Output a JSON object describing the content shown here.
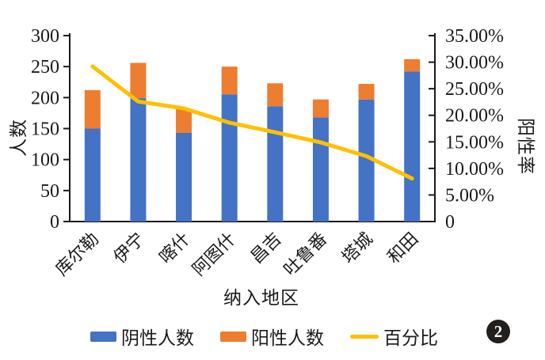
{
  "figure": {
    "badge_number": "2"
  },
  "chart_data": {
    "type": "bar",
    "subtype": "stacked-bar-with-line",
    "title": "",
    "xlabel": "纳入地区",
    "ylabel_left": "人数",
    "ylabel_right": "阳性率",
    "grid": false,
    "legend_position": "bottom",
    "categories": [
      "库尔勒",
      "伊宁",
      "喀什",
      "阿图什",
      "昌吉",
      "吐鲁番",
      "塔城",
      "和田"
    ],
    "left_axis": {
      "min": 0,
      "max": 300,
      "step": 50,
      "tick_labels": [
        "300",
        "250",
        "200",
        "150",
        "100",
        "50",
        "0"
      ]
    },
    "right_axis": {
      "min": 0,
      "max": 35,
      "step": 5,
      "tick_labels": [
        "35.00%",
        "30.00%",
        "25.00%",
        "20.00%",
        "15.00%",
        "10.00%",
        "5.00%",
        "0"
      ]
    },
    "series": [
      {
        "name": "阴性人数",
        "type": "bar",
        "stack": "people",
        "color": "#4472C4",
        "values": [
          150,
          199,
          143,
          205,
          186,
          168,
          197,
          242
        ]
      },
      {
        "name": "阳性人数",
        "type": "bar",
        "stack": "people",
        "color": "#ED7D31",
        "values": [
          62,
          57,
          39,
          45,
          37,
          29,
          25,
          20
        ]
      },
      {
        "name": "百分比",
        "type": "line",
        "axis": "right",
        "color": "#FFC000",
        "values_percent": [
          29.2,
          22.6,
          21.3,
          18.6,
          16.8,
          14.9,
          12.3,
          8.1
        ]
      }
    ],
    "colors": {
      "axis": "#1a1a1a",
      "text": "#1a1a1a",
      "background": "#ffffff"
    }
  }
}
